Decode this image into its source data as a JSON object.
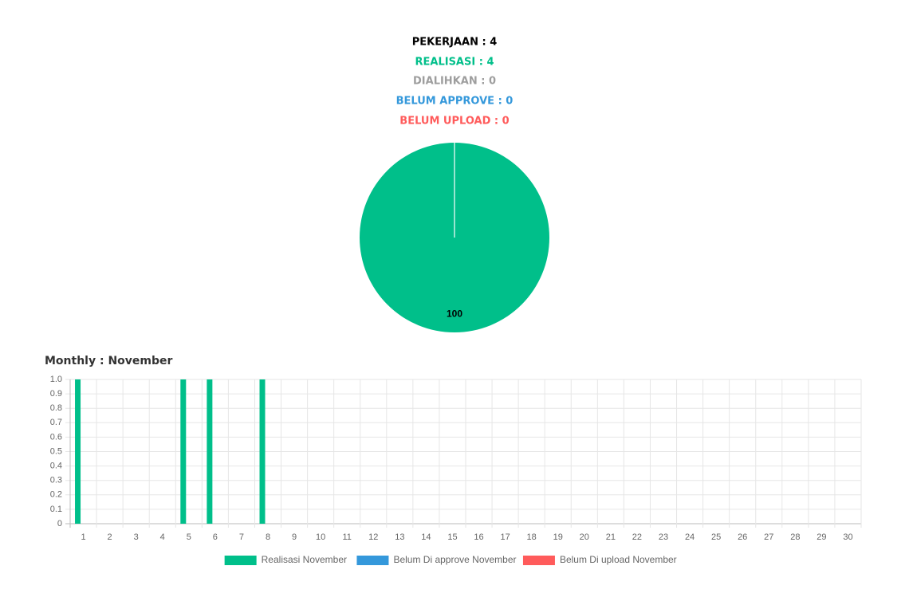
{
  "summary": [
    "PEKERJAAN : 4",
    "REALISASI : 4",
    "DIALIHKAN : 0",
    "BELUM APPROVE : 0",
    "BELUM UPLOAD : 0"
  ],
  "chart_data": [
    {
      "type": "pie",
      "values": [
        100
      ],
      "colors": [
        "#00bf8a"
      ]
    },
    {
      "type": "bar",
      "title": "Monthly : November",
      "categories": [
        "1",
        "2",
        "3",
        "4",
        "5",
        "6",
        "7",
        "8",
        "9",
        "10",
        "11",
        "12",
        "13",
        "14",
        "15",
        "16",
        "17",
        "18",
        "19",
        "20",
        "21",
        "22",
        "23",
        "24",
        "25",
        "26",
        "27",
        "28",
        "29",
        "30"
      ],
      "series": [
        {
          "name": "Realisasi November",
          "color": "#00bf8a",
          "values": [
            1,
            0,
            0,
            0,
            1,
            1,
            0,
            1,
            0,
            0,
            0,
            0,
            0,
            0,
            0,
            0,
            0,
            0,
            0,
            0,
            0,
            0,
            0,
            0,
            0,
            0,
            0,
            0,
            0,
            0
          ]
        },
        {
          "name": "Belum Di approve November",
          "color": "#3498db",
          "values": [
            0,
            0,
            0,
            0,
            0,
            0,
            0,
            0,
            0,
            0,
            0,
            0,
            0,
            0,
            0,
            0,
            0,
            0,
            0,
            0,
            0,
            0,
            0,
            0,
            0,
            0,
            0,
            0,
            0,
            0
          ]
        },
        {
          "name": "Belum Di upload November",
          "color": "#ff5b5b",
          "values": [
            0,
            0,
            0,
            0,
            0,
            0,
            0,
            0,
            0,
            0,
            0,
            0,
            0,
            0,
            0,
            0,
            0,
            0,
            0,
            0,
            0,
            0,
            0,
            0,
            0,
            0,
            0,
            0,
            0,
            0
          ]
        }
      ],
      "ylim": [
        0,
        1
      ],
      "yticks": [
        0,
        0.1,
        0.2,
        0.3,
        0.4,
        0.5,
        0.6,
        0.7,
        0.8,
        0.9,
        {
          "value": 1,
          "label": "1.0"
        }
      ],
      "grid": true,
      "legend": "bottom"
    }
  ]
}
